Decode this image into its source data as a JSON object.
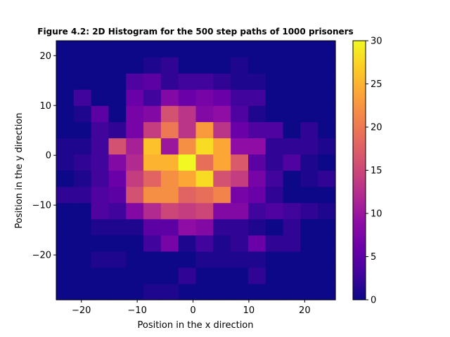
{
  "chart_data": {
    "type": "heatmap",
    "title": "Figure 4.2: 2D Histogram for the 500 step paths of 1000 prisoners",
    "xlabel": "Position in the x direction",
    "ylabel": "Position in the y direction",
    "xlim": [
      -24.5,
      25.5
    ],
    "ylim": [
      -29.0,
      23.0
    ],
    "x_edges": [
      -24.5,
      -21.38,
      -18.25,
      -15.12,
      -12.0,
      -8.88,
      -5.75,
      -2.62,
      0.5,
      3.62,
      6.75,
      9.88,
      13.0,
      16.12,
      19.25,
      22.38,
      25.5
    ],
    "y_edges": [
      -29.0,
      -25.75,
      -22.5,
      -19.25,
      -16.0,
      -12.75,
      -9.5,
      -6.25,
      -3.0,
      0.25,
      3.5,
      6.75,
      10.0,
      13.25,
      16.5,
      19.75,
      23.0
    ],
    "counts": [
      [
        0,
        0,
        0,
        0,
        0,
        1,
        1,
        0,
        0,
        0,
        0,
        0,
        0,
        0,
        0,
        0
      ],
      [
        0,
        0,
        0,
        0,
        0,
        0,
        0,
        2,
        0,
        0,
        0,
        2,
        0,
        0,
        0,
        0
      ],
      [
        0,
        0,
        1,
        1,
        0,
        0,
        0,
        0,
        1,
        1,
        1,
        1,
        0,
        0,
        0,
        0
      ],
      [
        0,
        0,
        0,
        0,
        0,
        3,
        7,
        1,
        3,
        1,
        2,
        6,
        2,
        2,
        0,
        0
      ],
      [
        0,
        0,
        1,
        1,
        1,
        5,
        5,
        9,
        8,
        2,
        2,
        1,
        0,
        2,
        0,
        0
      ],
      [
        0,
        0,
        4,
        3,
        8,
        12,
        15,
        14,
        15,
        8,
        8,
        3,
        4,
        3,
        2,
        1
      ],
      [
        2,
        2,
        4,
        5,
        16,
        22,
        22,
        18,
        19,
        21,
        7,
        6,
        2,
        0,
        0,
        0
      ],
      [
        0,
        1,
        3,
        6,
        14,
        18,
        22,
        24,
        28,
        16,
        14,
        7,
        3,
        0,
        1,
        2
      ],
      [
        1,
        2,
        3,
        8,
        12,
        25,
        25,
        30,
        19,
        24,
        17,
        5,
        2,
        4,
        1,
        0
      ],
      [
        1,
        1,
        3,
        16,
        11,
        26,
        10,
        22,
        28,
        24,
        9,
        9,
        2,
        2,
        2,
        1
      ],
      [
        0,
        0,
        3,
        2,
        7,
        14,
        20,
        13,
        23,
        13,
        6,
        4,
        4,
        0,
        2,
        0
      ],
      [
        0,
        1,
        5,
        0,
        7,
        8,
        16,
        13,
        8,
        9,
        4,
        1,
        0,
        0,
        0,
        0
      ],
      [
        0,
        3,
        0,
        0,
        6,
        3,
        8,
        6,
        7,
        6,
        3,
        3,
        0,
        0,
        0,
        0
      ],
      [
        0,
        0,
        0,
        0,
        4,
        5,
        2,
        3,
        3,
        2,
        1,
        1,
        0,
        0,
        0,
        0
      ],
      [
        0,
        0,
        0,
        0,
        0,
        1,
        2,
        0,
        0,
        0,
        1,
        0,
        0,
        0,
        0,
        0
      ],
      [
        0,
        0,
        0,
        0,
        0,
        0,
        0,
        0,
        0,
        0,
        0,
        0,
        0,
        0,
        0,
        0
      ]
    ],
    "counts_row_order": "bottom-to-top",
    "xticks": [
      -20,
      -10,
      0,
      10,
      20
    ],
    "xtick_labels": [
      "−20",
      "−10",
      "0",
      "10",
      "20"
    ],
    "yticks": [
      -20,
      -10,
      0,
      10,
      20
    ],
    "ytick_labels": [
      "−20",
      "−10",
      "0",
      "10",
      "20"
    ],
    "colorbar": {
      "colormap": "plasma",
      "range": [
        0,
        30
      ],
      "ticks": [
        0,
        5,
        10,
        15,
        20,
        25,
        30
      ],
      "tick_labels": [
        "0",
        "5",
        "10",
        "15",
        "20",
        "25",
        "30"
      ]
    },
    "grid": false,
    "legend": "none"
  }
}
